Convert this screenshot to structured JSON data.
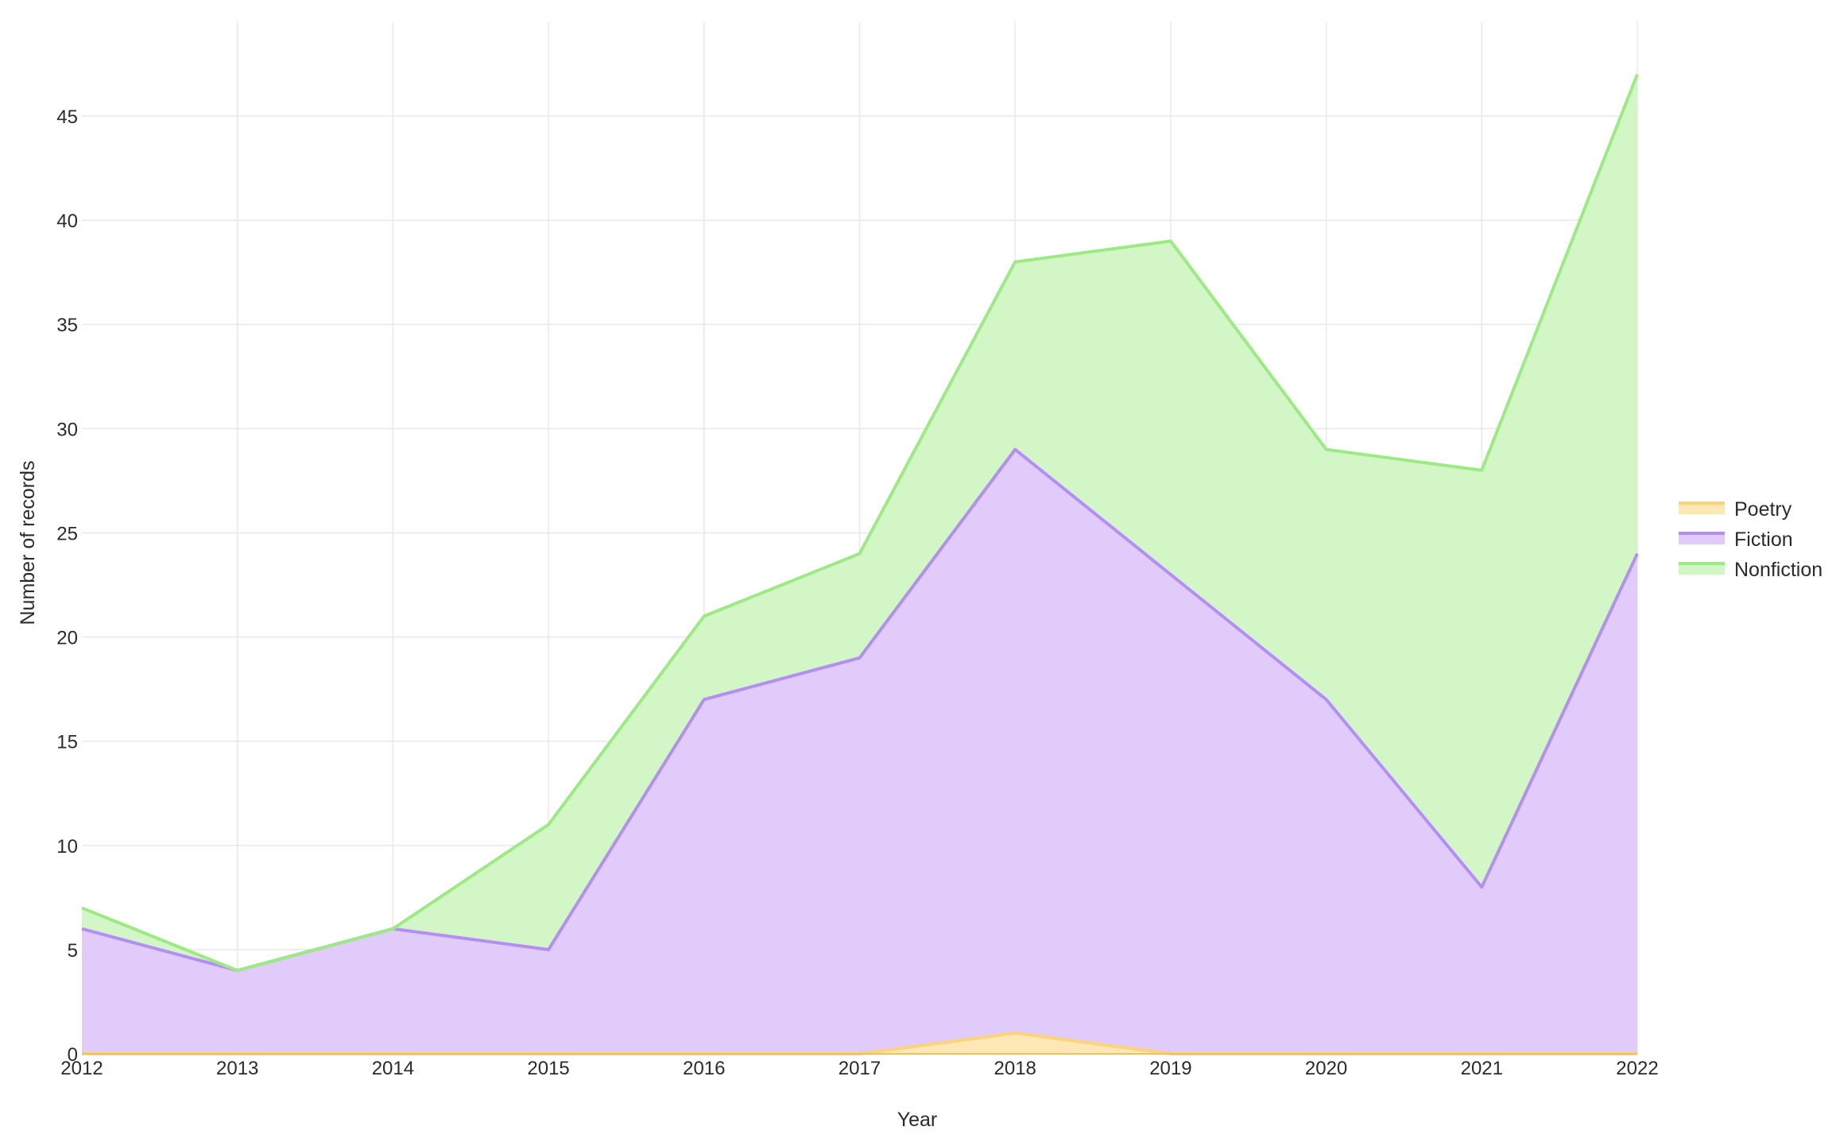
{
  "chart_data": {
    "type": "area",
    "stacked": true,
    "title": "",
    "xlabel": "Year",
    "ylabel": "Number of records",
    "x": [
      "2012",
      "2013",
      "2014",
      "2015",
      "2016",
      "2017",
      "2018",
      "2019",
      "2020",
      "2021",
      "2022"
    ],
    "ylim": [
      0,
      49.5
    ],
    "yticks": [
      0,
      5,
      10,
      15,
      20,
      25,
      30,
      35,
      40,
      45
    ],
    "grid": true,
    "legend_position": "right",
    "series": [
      {
        "name": "Poetry",
        "values": [
          0,
          0,
          0,
          0,
          0,
          0,
          1,
          0,
          0,
          0,
          0
        ],
        "line_color": "#fdd37a",
        "fill_color": "#fde8b5"
      },
      {
        "name": "Fiction",
        "values": [
          6,
          4,
          6,
          5,
          17,
          19,
          28,
          23,
          17,
          8,
          24
        ],
        "line_color": "#b48ef7",
        "fill_color": "#e0cbfb"
      },
      {
        "name": "Nonfiction",
        "values": [
          1,
          0,
          0,
          6,
          4,
          5,
          9,
          16,
          12,
          20,
          23
        ],
        "line_color": "#9bea82",
        "fill_color": "#d3f6c6"
      }
    ]
  }
}
